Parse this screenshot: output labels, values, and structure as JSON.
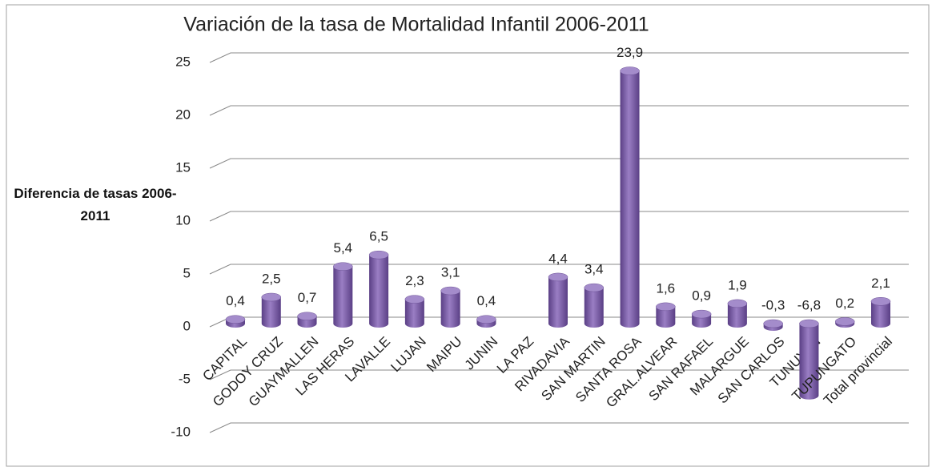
{
  "chart_data": {
    "type": "bar",
    "title": "Variación de la tasa de Mortalidad Infantil 2006-2011",
    "y_label": "Diferencia de tasas 2006-2011",
    "categories": [
      "CAPITAL",
      "GODOY CRUZ",
      "GUAYMALLEN",
      "LAS HERAS",
      "LAVALLE",
      "LUJAN",
      "MAIPU",
      "JUNIN",
      "LA PAZ",
      "RIVADAVIA",
      "SAN MARTIN",
      "SANTA ROSA",
      "GRAL.ALVEAR",
      "SAN RAFAEL",
      "MALARGUE",
      "SAN CARLOS",
      "TUNUYAN",
      "TUPUNGATO",
      "Total provincial"
    ],
    "values": [
      0.4,
      2.5,
      0.7,
      5.4,
      6.5,
      2.3,
      3.1,
      0.4,
      null,
      4.4,
      3.4,
      23.9,
      1.6,
      0.9,
      1.9,
      -0.3,
      -6.8,
      0.2,
      2.1
    ],
    "value_labels": [
      "0,4",
      "2,5",
      "0,7",
      "5,4",
      "6,5",
      "2,3",
      "3,1",
      "0,4",
      null,
      "4,4",
      "3,4",
      "23,9",
      "1,6",
      "0,9",
      "1,9",
      "-0,3",
      "-6,8",
      "0,2",
      "2,1"
    ],
    "color": "#7e5fa8",
    "ylim": [
      -10,
      25
    ],
    "yticks": [
      -10,
      -5,
      0,
      5,
      10,
      15,
      20,
      25
    ],
    "grid": true
  }
}
